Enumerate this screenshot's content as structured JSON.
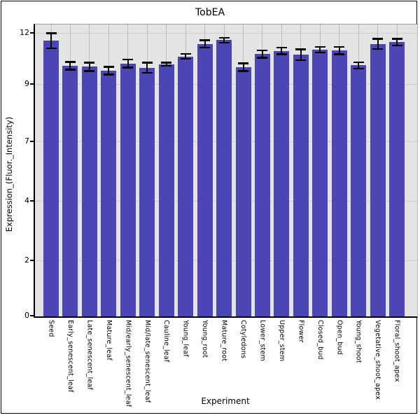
{
  "chart_data": {
    "type": "bar",
    "title": "TobEA",
    "xlabel": "Experiment",
    "ylabel": "Expression_(Fluor._Intensity)",
    "categories": [
      "Seed",
      "Early_senescent_leaf",
      "Late_senescent_leaf",
      "Mature_leaf",
      "Mid/early_senescent_leaf",
      "Mid/late_senescent_leaf",
      "Cauline_leaf",
      "Young_leaf",
      "Young_root",
      "Mature_root",
      "Cotyledons",
      "Lower_stem",
      "Upper_stem",
      "Flower",
      "Closed_bud",
      "Open_bud",
      "Young_shoot",
      "Vegetative_shoot_apex",
      "Floral_shoot_apex"
    ],
    "values": [
      11.67,
      10.6,
      10.56,
      10.4,
      10.7,
      10.52,
      10.67,
      11.0,
      11.53,
      11.69,
      10.54,
      11.1,
      11.24,
      11.07,
      11.29,
      11.25,
      10.62,
      11.53,
      11.61
    ],
    "errors": [
      0.33,
      0.17,
      0.19,
      0.17,
      0.18,
      0.22,
      0.08,
      0.11,
      0.16,
      0.11,
      0.17,
      0.16,
      0.15,
      0.24,
      0.13,
      0.17,
      0.14,
      0.22,
      0.15
    ],
    "y_ticks": {
      "labels": [
        "0",
        "2",
        "4",
        "7",
        "9",
        "12"
      ]
    },
    "ylim": [
      0,
      12.4
    ],
    "grid": true,
    "legend": "none",
    "style": {
      "bar_color": "#4b46b4",
      "error_color": "#000000",
      "plot_bg": "#e4e4e4",
      "grid_vertical_color": "#bcbcbc",
      "grid_horizontal_color": "#cecece",
      "axis_color": "#000000",
      "outer_bg": "#ffffff"
    }
  }
}
